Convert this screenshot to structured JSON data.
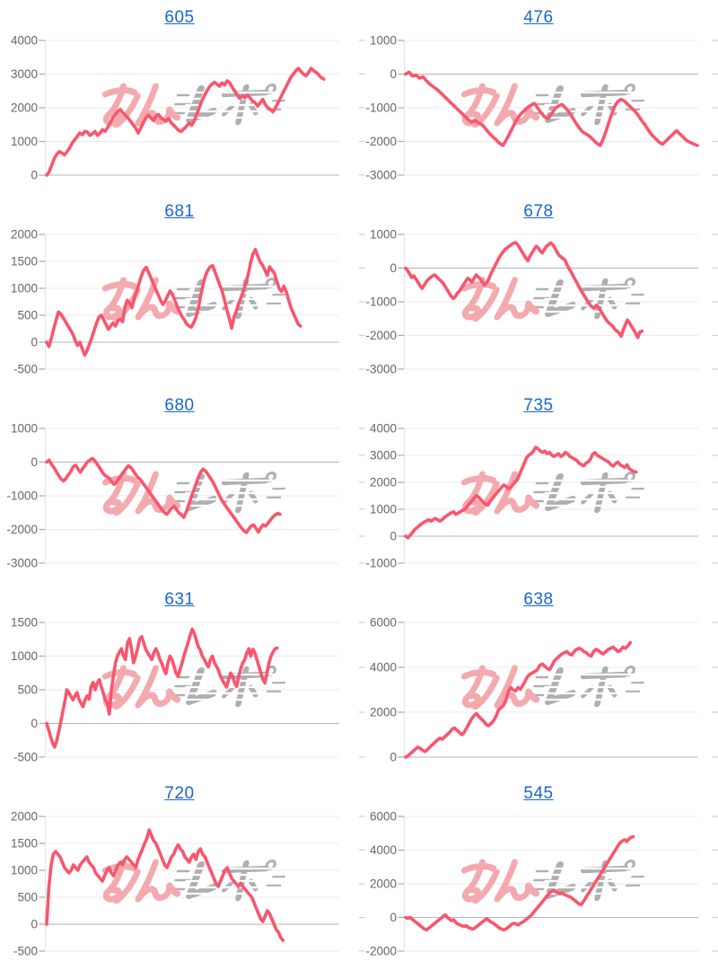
{
  "page": {
    "background": "#ffffff"
  },
  "style": {
    "line_color": "#F8566E",
    "link_color": "#1866CF",
    "tick_label_color": "#666666",
    "grid_color": "#EBEBEB",
    "zero_line_color": "#B5B5B5",
    "axis_border_color": "#E3E3E3",
    "tick_mark_color": "#A8A8A8",
    "edge_tick_color": "#CFCFCF",
    "watermark_pink": "#F3A9AE",
    "watermark_gray": "#AFAFAF"
  },
  "watermark": {
    "pink_text": "みん",
    "gray_text": "レポ"
  },
  "chart_data": [
    {
      "type": "line",
      "title": "605",
      "ylim": [
        0,
        4000
      ],
      "yticks": [
        4000,
        3000,
        2000,
        1000,
        0
      ],
      "x_end_frac": 0.95,
      "values": [
        0,
        100,
        300,
        500,
        620,
        700,
        660,
        600,
        700,
        800,
        950,
        1050,
        1150,
        1250,
        1200,
        1300,
        1280,
        1180,
        1230,
        1300,
        1180,
        1250,
        1350,
        1300,
        1420,
        1550,
        1700,
        1800,
        1900,
        1950,
        1850,
        1780,
        1700,
        1600,
        1500,
        1400,
        1250,
        1400,
        1550,
        1700,
        1780,
        1700,
        1620,
        1750,
        1800,
        1700,
        1650,
        1600,
        1680,
        1550,
        1480,
        1400,
        1320,
        1300,
        1380,
        1450,
        1550,
        1480,
        1600,
        1800,
        2000,
        2200,
        2350,
        2500,
        2620,
        2700,
        2760,
        2700,
        2640,
        2740,
        2680,
        2800,
        2750,
        2600,
        2500,
        2380,
        2280,
        2350,
        2300,
        2380,
        2300,
        2200,
        2150,
        2050,
        2150,
        2250,
        2100,
        2000,
        1950,
        1880,
        2000,
        2150,
        2300,
        2450,
        2600,
        2750,
        2900,
        3000,
        3100,
        3170,
        3080,
        3000,
        2950,
        3050,
        3170,
        3100,
        3050,
        2980,
        2900,
        2850
      ]
    },
    {
      "type": "line",
      "title": "476",
      "ylim": [
        -3000,
        1000
      ],
      "yticks": [
        1000,
        0,
        -1000,
        -2000,
        -3000
      ],
      "x_end_frac": 1.0,
      "values": [
        0,
        60,
        -60,
        -30,
        -120,
        -80,
        -200,
        -300,
        -380,
        -450,
        -550,
        -650,
        -750,
        -850,
        -950,
        -1050,
        -1150,
        -1250,
        -1350,
        -1430,
        -1380,
        -1450,
        -1500,
        -1620,
        -1750,
        -1850,
        -1950,
        -2050,
        -2120,
        -1950,
        -1750,
        -1550,
        -1350,
        -1200,
        -1100,
        -1000,
        -930,
        -870,
        -1000,
        -1150,
        -1270,
        -1320,
        -1180,
        -1020,
        -950,
        -900,
        -1000,
        -1120,
        -1280,
        -1450,
        -1600,
        -1720,
        -1780,
        -1850,
        -1950,
        -2050,
        -2120,
        -1900,
        -1600,
        -1280,
        -1000,
        -820,
        -750,
        -800,
        -900,
        -1000,
        -1100,
        -1230,
        -1380,
        -1520,
        -1680,
        -1820,
        -1920,
        -2020,
        -2080,
        -1980,
        -1880,
        -1780,
        -1680,
        -1780,
        -1880,
        -1980,
        -2030,
        -2080,
        -2120
      ]
    },
    {
      "type": "line",
      "title": "681",
      "ylim": [
        -500,
        2000
      ],
      "yticks": [
        2000,
        1500,
        1000,
        500,
        0,
        -500
      ],
      "x_end_frac": 0.87,
      "values": [
        0,
        -80,
        80,
        250,
        420,
        560,
        520,
        450,
        380,
        300,
        230,
        150,
        40,
        -60,
        0,
        -120,
        -240,
        -160,
        -40,
        80,
        220,
        350,
        460,
        500,
        420,
        330,
        240,
        300,
        360,
        300,
        400,
        430,
        380,
        650,
        780,
        720,
        640,
        830,
        950,
        1100,
        1240,
        1340,
        1390,
        1290,
        1190,
        1080,
        980,
        880,
        780,
        700,
        760,
        860,
        950,
        890,
        780,
        670,
        570,
        480,
        420,
        340,
        300,
        280,
        360,
        470,
        650,
        880,
        1080,
        1240,
        1340,
        1400,
        1420,
        1300,
        1180,
        1060,
        950,
        780,
        600,
        440,
        260,
        470,
        580,
        720,
        830,
        960,
        1100,
        1260,
        1480,
        1640,
        1720,
        1600,
        1490,
        1430,
        1340,
        1240,
        1400,
        1340,
        1280,
        1140,
        1000,
        940,
        1040,
        940,
        790,
        640,
        540,
        440,
        340,
        300
      ]
    },
    {
      "type": "line",
      "title": "678",
      "ylim": [
        -3000,
        1000
      ],
      "yticks": [
        1000,
        0,
        -1000,
        -2000,
        -3000
      ],
      "x_end_frac": 0.81,
      "values": [
        0,
        -80,
        -180,
        -280,
        -230,
        -330,
        -430,
        -530,
        -600,
        -500,
        -400,
        -330,
        -280,
        -230,
        -200,
        -260,
        -320,
        -380,
        -440,
        -540,
        -640,
        -740,
        -840,
        -900,
        -840,
        -740,
        -680,
        -580,
        -480,
        -380,
        -300,
        -350,
        -420,
        -300,
        -200,
        -260,
        -320,
        -420,
        -500,
        -440,
        -340,
        -180,
        -60,
        60,
        180,
        300,
        400,
        480,
        560,
        600,
        650,
        700,
        740,
        760,
        700,
        600,
        500,
        400,
        300,
        220,
        360,
        460,
        560,
        650,
        600,
        500,
        450,
        560,
        650,
        700,
        750,
        690,
        590,
        480,
        380,
        330,
        280,
        230,
        80,
        -30,
        -130,
        -250,
        -370,
        -480,
        -600,
        -700,
        -800,
        -900,
        -1000,
        -1100,
        -1150,
        -1200,
        -1100,
        -1160,
        -1260,
        -1360,
        -1460,
        -1560,
        -1620,
        -1680,
        -1730,
        -1820,
        -1870,
        -1930,
        -2020,
        -1830,
        -1680,
        -1540,
        -1630,
        -1730,
        -1830,
        -1940,
        -2060,
        -1900,
        -1870
      ]
    },
    {
      "type": "line",
      "title": "680",
      "ylim": [
        -3000,
        1000
      ],
      "yticks": [
        1000,
        0,
        -1000,
        -2000,
        -3000
      ],
      "x_end_frac": 0.8,
      "values": [
        0,
        60,
        -60,
        -160,
        -280,
        -400,
        -500,
        -560,
        -490,
        -380,
        -280,
        -140,
        -90,
        -200,
        -300,
        -190,
        -90,
        10,
        60,
        110,
        40,
        -60,
        -170,
        -280,
        -380,
        -430,
        -480,
        -580,
        -660,
        -600,
        -490,
        -390,
        -290,
        -190,
        -110,
        -160,
        -260,
        -370,
        -460,
        -520,
        -620,
        -720,
        -820,
        -920,
        -1020,
        -1120,
        -1220,
        -1320,
        -1420,
        -1500,
        -1550,
        -1450,
        -1360,
        -1310,
        -1410,
        -1510,
        -1560,
        -1640,
        -1480,
        -1280,
        -1060,
        -860,
        -660,
        -460,
        -300,
        -210,
        -260,
        -360,
        -470,
        -580,
        -720,
        -870,
        -1020,
        -1160,
        -1260,
        -1360,
        -1460,
        -1560,
        -1660,
        -1760,
        -1860,
        -1960,
        -2040,
        -2090,
        -1990,
        -1900,
        -1860,
        -1960,
        -2080,
        -1950,
        -1860,
        -1900,
        -1810,
        -1720,
        -1630,
        -1570,
        -1520,
        -1550
      ]
    },
    {
      "type": "line",
      "title": "735",
      "ylim": [
        -1000,
        4000
      ],
      "yticks": [
        4000,
        3000,
        2000,
        1000,
        0,
        -1000
      ],
      "x_end_frac": 0.79,
      "values": [
        0,
        -60,
        40,
        140,
        250,
        320,
        400,
        460,
        520,
        560,
        610,
        560,
        610,
        660,
        610,
        560,
        610,
        700,
        760,
        820,
        870,
        910,
        810,
        860,
        910,
        960,
        1010,
        1110,
        1210,
        1310,
        1410,
        1510,
        1450,
        1350,
        1260,
        1200,
        1150,
        1300,
        1400,
        1510,
        1610,
        1710,
        1810,
        1900,
        1850,
        1760,
        1810,
        1910,
        2010,
        2110,
        2310,
        2510,
        2710,
        2910,
        3010,
        3060,
        3160,
        3300,
        3250,
        3160,
        3110,
        3160,
        3060,
        3110,
        3010,
        2960,
        3010,
        3060,
        2960,
        3010,
        3110,
        3060,
        2960,
        2910,
        2860,
        2810,
        2710,
        2660,
        2610,
        2710,
        2760,
        2860,
        3050,
        3100,
        3000,
        2950,
        2900,
        2850,
        2800,
        2750,
        2650,
        2600,
        2700,
        2750,
        2650,
        2600,
        2550,
        2650,
        2500,
        2450,
        2400,
        2380
      ]
    },
    {
      "type": "line",
      "title": "631",
      "ylim": [
        -500,
        1500
      ],
      "yticks": [
        1500,
        1000,
        500,
        0,
        -500
      ],
      "x_end_frac": 0.79,
      "values": [
        0,
        -100,
        -200,
        -300,
        -350,
        -250,
        -120,
        30,
        180,
        330,
        500,
        460,
        400,
        350,
        410,
        460,
        360,
        300,
        250,
        350,
        410,
        360,
        550,
        610,
        500,
        600,
        650,
        550,
        450,
        350,
        300,
        140,
        500,
        700,
        900,
        1000,
        1060,
        1110,
        1000,
        950,
        1200,
        1260,
        1100,
        900,
        1000,
        1110,
        1250,
        1290,
        1200,
        1100,
        1050,
        1000,
        950,
        1050,
        1110,
        1050,
        950,
        890,
        800,
        740,
        900,
        1000,
        950,
        850,
        750,
        700,
        800,
        900,
        1010,
        1110,
        1210,
        1310,
        1400,
        1340,
        1240,
        1140,
        1090,
        1000,
        950,
        890,
        840,
        950,
        1000,
        900,
        850,
        790,
        700,
        640,
        590,
        540,
        650,
        750,
        700,
        600,
        550,
        700,
        810,
        900,
        950,
        1050,
        1110,
        1000,
        1100,
        1050,
        950,
        850,
        750,
        650,
        600,
        750,
        900,
        1000,
        1060,
        1110,
        1120
      ]
    },
    {
      "type": "line",
      "title": "638",
      "ylim": [
        0,
        6000
      ],
      "yticks": [
        6000,
        4000,
        2000,
        0
      ],
      "x_end_frac": 0.77,
      "values": [
        0,
        60,
        160,
        260,
        360,
        450,
        390,
        300,
        250,
        350,
        460,
        560,
        660,
        760,
        850,
        800,
        900,
        1000,
        1110,
        1250,
        1300,
        1200,
        1100,
        1000,
        1110,
        1300,
        1500,
        1700,
        1850,
        1950,
        1800,
        1700,
        1600,
        1450,
        1400,
        1500,
        1620,
        1800,
        2100,
        2200,
        2300,
        2500,
        2900,
        3100,
        3000,
        2950,
        3100,
        3020,
        3200,
        3400,
        3600,
        3700,
        3760,
        3820,
        3900,
        4100,
        4150,
        4050,
        3950,
        3900,
        4100,
        4300,
        4400,
        4500,
        4600,
        4650,
        4700,
        4600,
        4550,
        4700,
        4800,
        4850,
        4800,
        4700,
        4650,
        4550,
        4500,
        4700,
        4800,
        4750,
        4650,
        4600,
        4700,
        4800,
        4850,
        4900,
        4800,
        4700,
        4760,
        4900,
        4850,
        4950,
        5100
      ]
    },
    {
      "type": "line",
      "title": "720",
      "ylim": [
        -500,
        2000
      ],
      "yticks": [
        2000,
        1500,
        1000,
        500,
        0,
        -500
      ],
      "x_end_frac": 0.81,
      "values": [
        0,
        700,
        1100,
        1300,
        1350,
        1300,
        1250,
        1150,
        1050,
        1000,
        950,
        1000,
        1100,
        1050,
        1000,
        1100,
        1150,
        1200,
        1250,
        1150,
        1100,
        1050,
        950,
        900,
        850,
        800,
        900,
        1000,
        1050,
        950,
        900,
        1000,
        1100,
        1150,
        1100,
        1200,
        1250,
        1200,
        1150,
        1100,
        1050,
        1200,
        1300,
        1400,
        1500,
        1600,
        1750,
        1650,
        1550,
        1500,
        1400,
        1300,
        1200,
        1100,
        1050,
        1150,
        1250,
        1300,
        1400,
        1470,
        1400,
        1350,
        1250,
        1200,
        1150,
        1250,
        1300,
        1200,
        1350,
        1400,
        1300,
        1250,
        1150,
        1050,
        950,
        850,
        750,
        700,
        800,
        900,
        1000,
        1050,
        950,
        850,
        800,
        750,
        700,
        760,
        700,
        650,
        600,
        550,
        500,
        400,
        300,
        200,
        100,
        50,
        150,
        250,
        200,
        100,
        0,
        -100,
        -150,
        -250,
        -300
      ]
    },
    {
      "type": "line",
      "title": "545",
      "ylim": [
        -2000,
        6000
      ],
      "yticks": [
        6000,
        4000,
        2000,
        0,
        -2000
      ],
      "x_end_frac": 0.78,
      "values": [
        0,
        -60,
        10,
        -90,
        -190,
        -290,
        -390,
        -490,
        -590,
        -690,
        -740,
        -640,
        -540,
        -440,
        -340,
        -240,
        -140,
        -40,
        60,
        160,
        0,
        -100,
        -190,
        -140,
        -290,
        -390,
        -440,
        -490,
        -540,
        -490,
        -590,
        -640,
        -690,
        -640,
        -540,
        -440,
        -340,
        -240,
        -140,
        -90,
        -190,
        -290,
        -340,
        -440,
        -540,
        -640,
        -690,
        -740,
        -690,
        -590,
        -490,
        -390,
        -340,
        -390,
        -440,
        -340,
        -290,
        -190,
        -90,
        10,
        110,
        260,
        410,
        560,
        710,
        860,
        1010,
        1160,
        1310,
        1460,
        1560,
        1610,
        1510,
        1460,
        1410,
        1460,
        1360,
        1310,
        1260,
        1210,
        1110,
        1010,
        910,
        810,
        760,
        910,
        1110,
        1310,
        1510,
        1710,
        1910,
        2110,
        2310,
        2510,
        2710,
        2910,
        3110,
        3310,
        3510,
        3710,
        3910,
        4110,
        4310,
        4460,
        4560,
        4610,
        4510,
        4660,
        4760,
        4800
      ]
    }
  ]
}
